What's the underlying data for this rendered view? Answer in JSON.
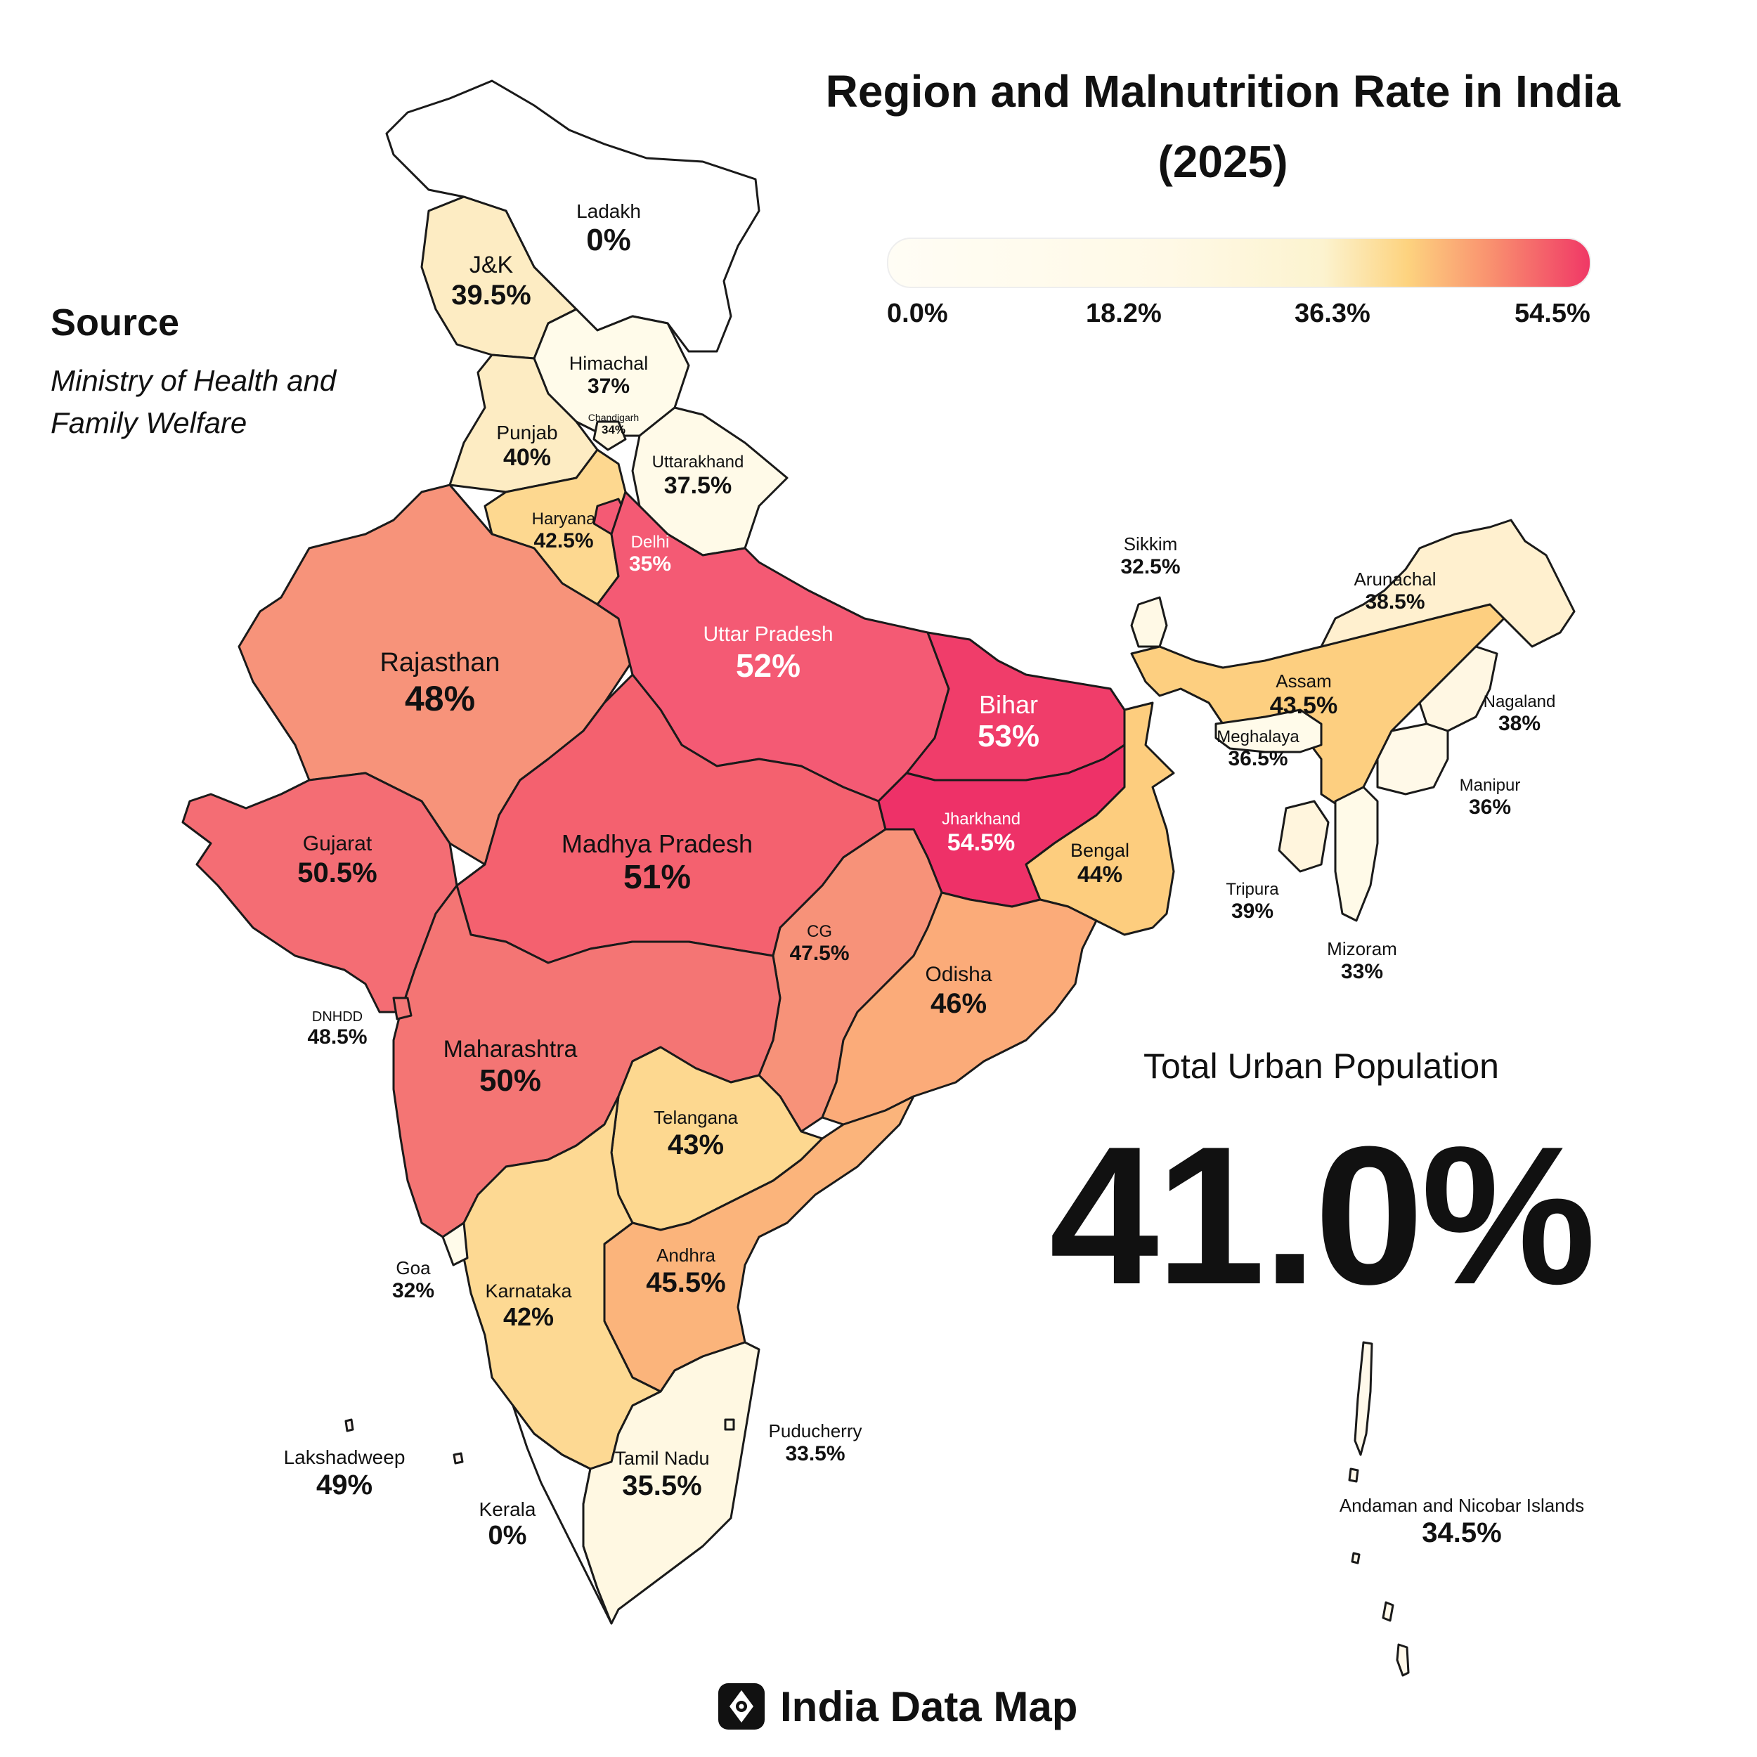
{
  "title": "Region and Malnutrition Rate in India (2025)",
  "legend": {
    "ticks": [
      "0.0%",
      "18.2%",
      "36.3%",
      "54.5%"
    ],
    "min": 0.0,
    "max": 54.5
  },
  "source": {
    "title": "Source",
    "text": "Ministry of Health and Family Welfare"
  },
  "summary": {
    "label": "Total Urban Population",
    "value": "41.0%"
  },
  "brand": {
    "name": "India Data Map",
    "icon": "location-eye-icon"
  },
  "colors": {
    "border": "#1a1a1a",
    "low": "#fffcf0",
    "mid": "#fdd37f",
    "high": "#f03866"
  },
  "regions": [
    {
      "name": "Ladakh",
      "value": "0%"
    },
    {
      "name": "J&K",
      "value": "39.5%"
    },
    {
      "name": "Himachal",
      "value": "37%"
    },
    {
      "name": "Punjab",
      "value": "40%"
    },
    {
      "name": "Chandigarh",
      "value": "34%"
    },
    {
      "name": "Uttarakhand",
      "value": "37.5%"
    },
    {
      "name": "Haryana",
      "value": "42.5%"
    },
    {
      "name": "Delhi",
      "value": "35%"
    },
    {
      "name": "Uttar Pradesh",
      "value": "52%"
    },
    {
      "name": "Rajasthan",
      "value": "48%"
    },
    {
      "name": "Gujarat",
      "value": "50.5%"
    },
    {
      "name": "Madhya Pradesh",
      "value": "51%"
    },
    {
      "name": "Bihar",
      "value": "53%"
    },
    {
      "name": "Jharkhand",
      "value": "54.5%"
    },
    {
      "name": "Bengal",
      "value": "44%"
    },
    {
      "name": "Sikkim",
      "value": "32.5%"
    },
    {
      "name": "Arunachal",
      "value": "38.5%"
    },
    {
      "name": "Assam",
      "value": "43.5%"
    },
    {
      "name": "Nagaland",
      "value": "38%"
    },
    {
      "name": "Meghalaya",
      "value": "36.5%"
    },
    {
      "name": "Manipur",
      "value": "36%"
    },
    {
      "name": "Tripura",
      "value": "39%"
    },
    {
      "name": "Mizoram",
      "value": "33%"
    },
    {
      "name": "CG",
      "value": "47.5%"
    },
    {
      "name": "Odisha",
      "value": "46%"
    },
    {
      "name": "DNHDD",
      "value": "48.5%"
    },
    {
      "name": "Maharashtra",
      "value": "50%"
    },
    {
      "name": "Telangana",
      "value": "43%"
    },
    {
      "name": "Andhra",
      "value": "45.5%"
    },
    {
      "name": "Karnataka",
      "value": "42%"
    },
    {
      "name": "Goa",
      "value": "32%"
    },
    {
      "name": "Tamil Nadu",
      "value": "35.5%"
    },
    {
      "name": "Puducherry",
      "value": "33.5%"
    },
    {
      "name": "Kerala",
      "value": "0%"
    },
    {
      "name": "Lakshadweep",
      "value": "49%"
    },
    {
      "name": "Andaman and Nicobar Islands",
      "value": "34.5%"
    }
  ]
}
